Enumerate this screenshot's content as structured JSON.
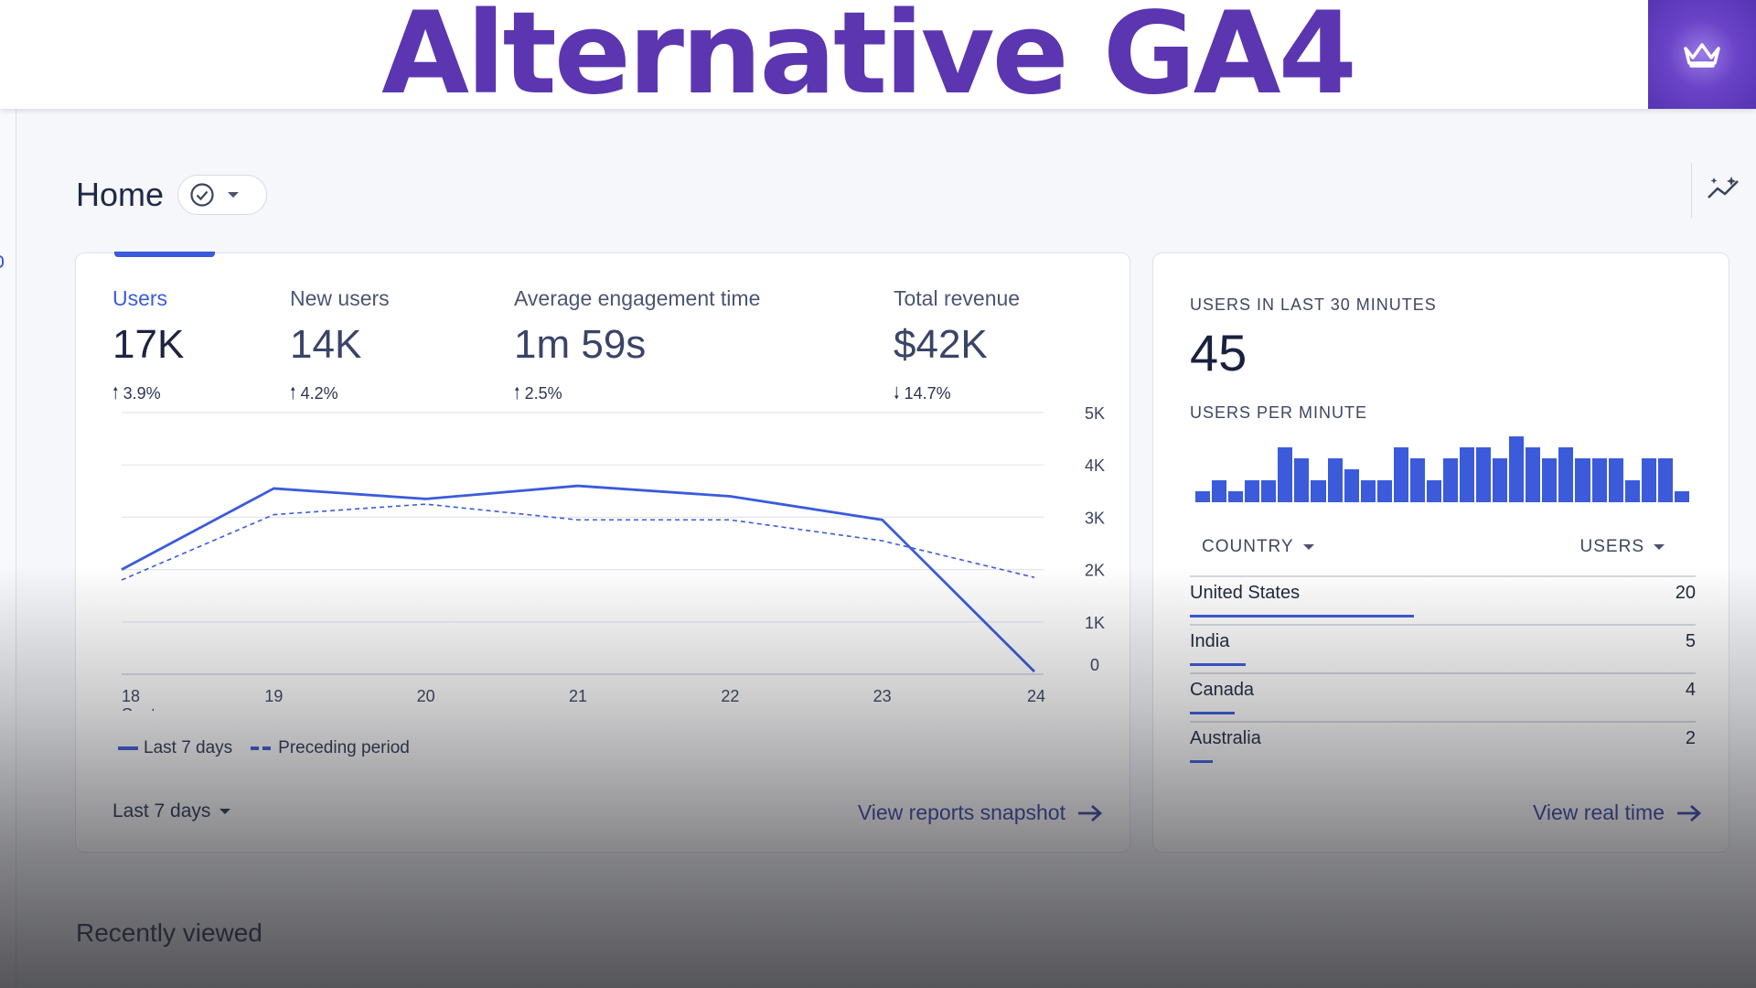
{
  "banner": {
    "title": "Alternative GA4",
    "logo_icon": "crown-icon"
  },
  "page": {
    "title": "Home",
    "status_icon": "check-circle-icon",
    "insights_icon": "insights-sparkle-icon"
  },
  "metrics": [
    {
      "label": "Users",
      "value": "17K",
      "change": "3.9%",
      "direction": "up"
    },
    {
      "label": "New users",
      "value": "14K",
      "change": "4.2%",
      "direction": "up"
    },
    {
      "label": "Average engagement time",
      "value": "1m 59s",
      "change": "2.5%",
      "direction": "up"
    },
    {
      "label": "Total revenue",
      "value": "$42K",
      "change": "14.7%",
      "direction": "down"
    }
  ],
  "chart_data": {
    "type": "line",
    "x": [
      "18",
      "19",
      "20",
      "21",
      "22",
      "23",
      "24"
    ],
    "x_sublabel": "Sept",
    "ylim": [
      0,
      5000
    ],
    "y_ticks": [
      "0",
      "1K",
      "2K",
      "3K",
      "4K",
      "5K"
    ],
    "series": [
      {
        "name": "Last 7 days",
        "style": "solid",
        "values": [
          2000,
          3550,
          3350,
          3600,
          3400,
          2950,
          50
        ]
      },
      {
        "name": "Preceding period",
        "style": "dashed",
        "values": [
          1800,
          3050,
          3250,
          2950,
          2950,
          2550,
          1850
        ]
      }
    ],
    "grid": true,
    "legend": "bottom-left",
    "color": "#3b5bdb"
  },
  "footer": {
    "range": "Last 7 days",
    "link": "View reports snapshot"
  },
  "realtime": {
    "heading": "USERS IN LAST 30 MINUTES",
    "count": "45",
    "sub_heading": "USERS PER MINUTE",
    "per_minute": [
      1,
      2,
      1,
      2,
      2,
      5,
      4,
      2,
      4,
      3,
      2,
      2,
      5,
      4,
      2,
      4,
      5,
      5,
      4,
      6,
      5,
      4,
      5,
      4,
      4,
      4,
      2,
      4,
      4,
      1
    ],
    "table_headers": {
      "country": "COUNTRY",
      "users": "USERS"
    },
    "rows": [
      {
        "country": "United States",
        "users": "20",
        "share": 1.0
      },
      {
        "country": "India",
        "users": "5",
        "share": 0.25
      },
      {
        "country": "Canada",
        "users": "4",
        "share": 0.2
      },
      {
        "country": "Australia",
        "users": "2",
        "share": 0.1
      }
    ],
    "link": "View real time"
  },
  "recently_viewed": "Recently viewed"
}
